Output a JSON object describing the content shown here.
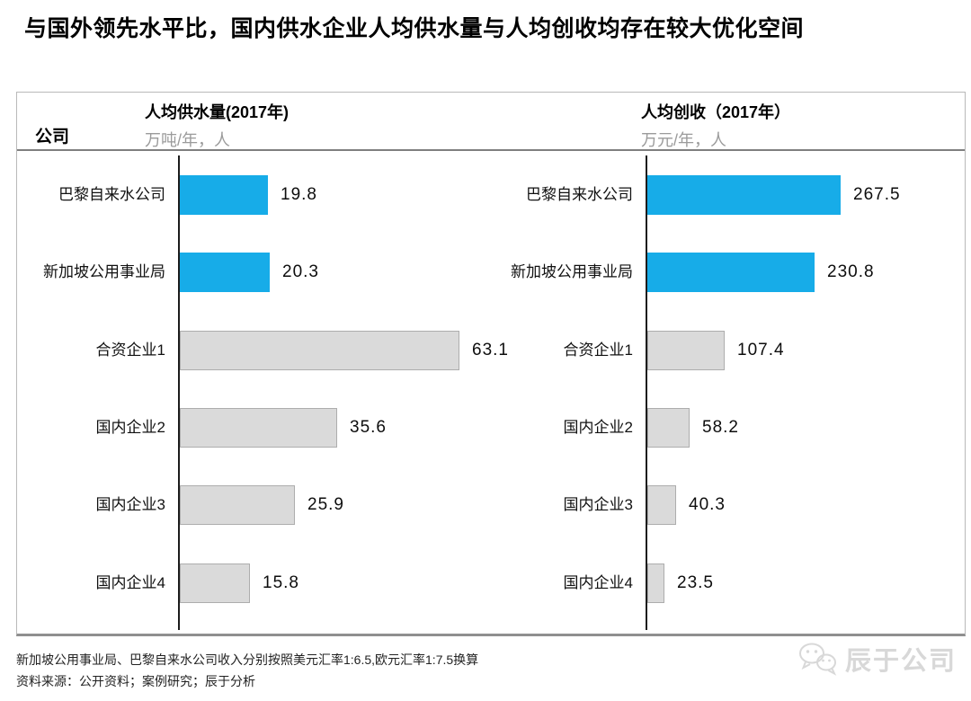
{
  "title": "与国外领先水平比，国内供水企业人均供水量与人均创收均存在较大优化空间",
  "table": {
    "company_column_header": "公司"
  },
  "chart_data": [
    {
      "type": "bar",
      "orientation": "horizontal",
      "title": "人均供水量(2017年)",
      "unit_label": "万吨/年，人",
      "categories": [
        "巴黎自来水公司",
        "新加坡公用事业局",
        "合资企业1",
        "国内企业2",
        "国内企业3",
        "国内企业4"
      ],
      "values": [
        19.8,
        20.3,
        63.1,
        35.6,
        25.9,
        15.8
      ],
      "value_labels": [
        "19.8",
        "20.3",
        "63.1",
        "35.6",
        "25.9",
        "15.8"
      ],
      "highlighted": [
        true,
        true,
        false,
        false,
        false,
        false
      ],
      "xlim": [
        0,
        70
      ],
      "grid": false,
      "legend": "none"
    },
    {
      "type": "bar",
      "orientation": "horizontal",
      "title": "人均创收（2017年）",
      "unit_label": "万元/年，人",
      "categories": [
        "巴黎自来水公司",
        "新加坡公用事业局",
        "合资企业1",
        "国内企业2",
        "国内企业3",
        "国内企业4"
      ],
      "values": [
        267.5,
        230.8,
        107.4,
        58.2,
        40.3,
        23.5
      ],
      "value_labels": [
        "267.5",
        "230.8",
        "107.4",
        "58.2",
        "40.3",
        "23.5"
      ],
      "highlighted": [
        true,
        true,
        false,
        false,
        false,
        false
      ],
      "xlim": [
        0,
        290
      ],
      "grid": false,
      "legend": "none"
    }
  ],
  "colors": {
    "highlight_bar": "#17ACE8",
    "default_bar": "#DADADA",
    "default_bar_border": "#ADADAD",
    "axis_line": "#1C1C1C",
    "subtitle_gray": "#9B9B9B",
    "watermark_gray": "#D8D8D8"
  },
  "footnotes": [
    "新加坡公用事业局、巴黎自来水公司收入分别按照美元汇率1:6.5,欧元汇率1:7.5换算",
    "资料来源：公开资料；案例研究；辰于分析"
  ],
  "watermark": {
    "icon": "wechat-icon",
    "text": "辰于公司"
  }
}
